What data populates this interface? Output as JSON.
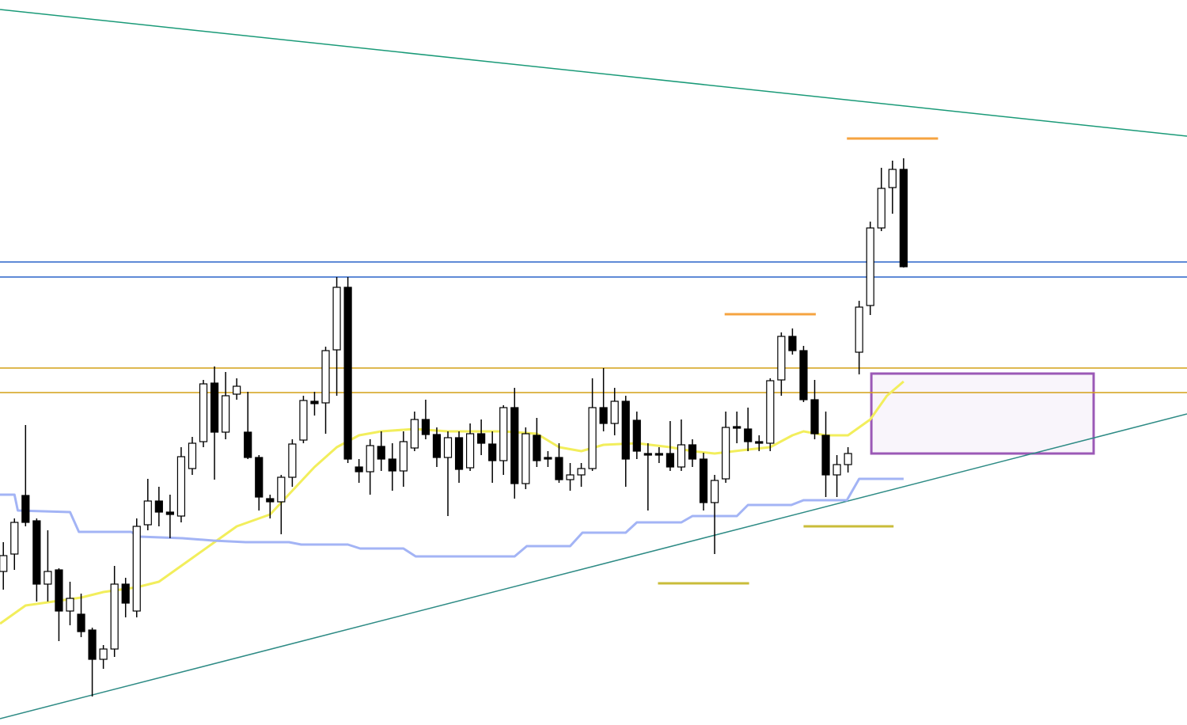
{
  "chart_data": {
    "type": "candlestick",
    "xlim": [
      -0.3,
      106.5
    ],
    "ylim": [
      0,
      916
    ],
    "up_color": "#ffffff",
    "down_color": "#000000",
    "open": [
      194,
      216,
      290,
      258,
      178,
      196,
      144,
      140,
      120,
      83,
      96,
      178,
      144,
      253,
      283,
      269,
      264,
      324,
      358,
      432,
      370,
      418,
      370,
      338,
      286,
      282,
      313,
      360,
      409,
      407,
      474,
      553,
      326,
      320,
      352,
      336,
      321,
      350,
      386,
      367,
      338,
      363,
      325,
      368,
      355,
      334,
      401,
      305,
      366,
      338,
      338,
      310,
      316,
      324,
      401,
      381,
      409,
      385,
      343,
      343,
      343,
      326,
      354,
      336,
      281,
      311,
      377,
      374,
      358,
      356,
      436,
      491,
      473,
      411,
      366,
      316,
      329,
      471,
      530,
      628,
      679,
      702
    ],
    "high": [
      231,
      261,
      379,
      261,
      246,
      198,
      181,
      166,
      123,
      101,
      201,
      186,
      261,
      311,
      301,
      291,
      351,
      364,
      436,
      453,
      446,
      438,
      421,
      341,
      291,
      316,
      361,
      416,
      421,
      478,
      566,
      566,
      336,
      361,
      371,
      356,
      371,
      396,
      411,
      376,
      371,
      371,
      381,
      386,
      371,
      404,
      426,
      376,
      388,
      346,
      356,
      331,
      331,
      438,
      451,
      426,
      416,
      396,
      356,
      351,
      384,
      386,
      361,
      344,
      316,
      396,
      396,
      401,
      366,
      438,
      496,
      501,
      479,
      436,
      396,
      341,
      351,
      536,
      636,
      704,
      713,
      716
    ],
    "low": [
      171,
      196,
      251,
      156,
      156,
      106,
      126,
      111,
      36,
      71,
      86,
      136,
      136,
      246,
      251,
      236,
      256,
      316,
      351,
      310,
      361,
      411,
      336,
      271,
      261,
      241,
      301,
      356,
      391,
      368,
      416,
      331,
      306,
      291,
      321,
      296,
      301,
      346,
      361,
      326,
      264,
      306,
      321,
      341,
      306,
      316,
      286,
      298,
      326,
      326,
      306,
      296,
      301,
      321,
      371,
      366,
      301,
      336,
      271,
      331,
      321,
      321,
      326,
      271,
      216,
      306,
      356,
      346,
      346,
      346,
      416,
      468,
      408,
      361,
      288,
      288,
      319,
      443,
      518,
      624,
      646,
      578
    ],
    "close": [
      214,
      256,
      256,
      178,
      194,
      144,
      160,
      118,
      83,
      96,
      178,
      154,
      251,
      283,
      269,
      266,
      339,
      356,
      431,
      370,
      416,
      428,
      338,
      288,
      282,
      313,
      355,
      410,
      406,
      473,
      553,
      336,
      320,
      353,
      336,
      321,
      358,
      386,
      367,
      338,
      363,
      323,
      368,
      356,
      334,
      401,
      305,
      368,
      334,
      336,
      310,
      316,
      324,
      401,
      381,
      409,
      336,
      346,
      341,
      341,
      326,
      354,
      336,
      281,
      309,
      376,
      375,
      358,
      356,
      435,
      491,
      473,
      411,
      368,
      316,
      329,
      343,
      528,
      628,
      678,
      702,
      579
    ],
    "overlays": [
      {
        "color": "#f2ee5c",
        "x": [
          -0.3,
          2,
          7,
          9,
          12,
          14,
          17,
          20,
          21,
          24,
          26,
          28,
          30,
          32,
          34,
          37,
          40,
          42,
          45,
          48,
          50,
          52,
          54,
          57,
          60,
          62,
          64,
          67,
          69,
          71,
          72,
          74,
          76,
          78,
          79.5,
          81
        ],
        "values": [
          128,
          151,
          161,
          168,
          174,
          181,
          211,
          241,
          251,
          266,
          296,
          326,
          351,
          366,
          371,
          374,
          371,
          371,
          371,
          368,
          351,
          346,
          354,
          356,
          351,
          346,
          343,
          348,
          351,
          366,
          371,
          366,
          366,
          386,
          416,
          434
        ]
      },
      {
        "color": "#a3b4f5",
        "x": [
          -0.3,
          1,
          1.3,
          6,
          6.8,
          11.5,
          12.2,
          16.1,
          18.9,
          21.8,
          25.7,
          26.8,
          31,
          32.1,
          36,
          37.1,
          46,
          47.1,
          51,
          52.1,
          56,
          57,
          61,
          62,
          66,
          67,
          70.9,
          72,
          75.9,
          77,
          81
        ],
        "values": [
          291,
          291,
          271,
          269,
          244,
          244,
          238,
          236,
          233,
          231,
          231,
          228,
          228,
          223,
          223,
          213,
          213,
          226,
          226,
          243,
          243,
          256,
          256,
          264,
          264,
          278,
          278,
          284,
          284,
          311,
          311
        ]
      }
    ],
    "levels": [
      {
        "value": 585,
        "color": "#2a63c8"
      },
      {
        "value": 566,
        "color": "#2a63c8"
      },
      {
        "value": 451,
        "color": "#d4a017"
      },
      {
        "value": 420,
        "color": "#d4a017"
      }
    ],
    "segments": [
      {
        "color": "#1a9a78",
        "x": [
          -0.3,
          106.5
        ],
        "values": [
          904,
          744
        ]
      },
      {
        "color": "#2e8b85",
        "x": [
          -0.3,
          106.5
        ],
        "values": [
          8,
          393
        ]
      },
      {
        "color": "#f5a340",
        "x": [
          75.9,
          84.1
        ],
        "values": [
          741,
          741
        ]
      },
      {
        "color": "#f5a340",
        "x": [
          64.9,
          73.1
        ],
        "values": [
          519,
          519
        ]
      },
      {
        "color": "#c9bc3a",
        "x": [
          72,
          80.1
        ],
        "values": [
          251,
          251
        ]
      },
      {
        "color": "#c9bc3a",
        "x": [
          58.9,
          67.1
        ],
        "values": [
          179,
          179
        ]
      }
    ],
    "zone": {
      "x": [
        78.1,
        98.1
      ],
      "values": [
        343,
        444
      ],
      "color": "#9b59b6"
    }
  }
}
